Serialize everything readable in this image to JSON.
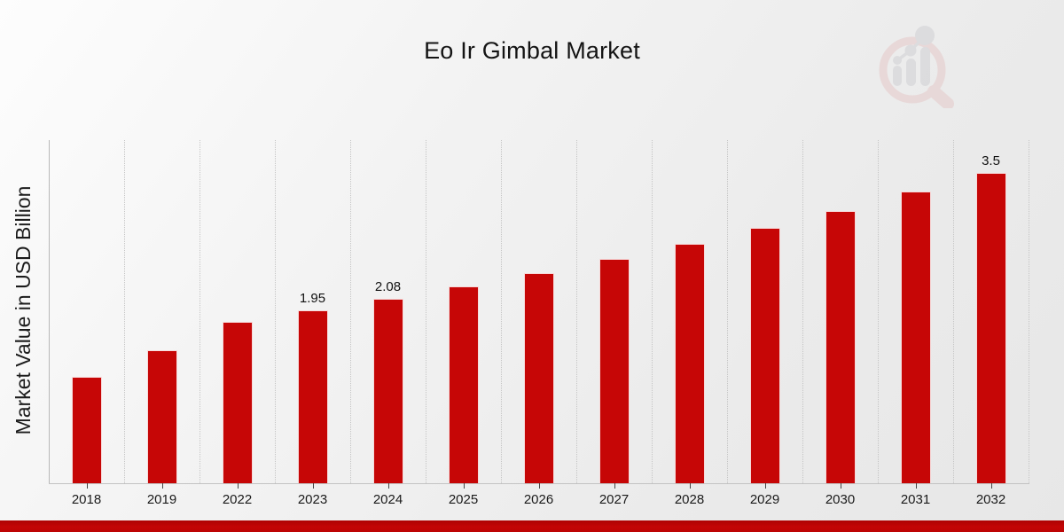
{
  "title": "Eo Ir Gimbal Market",
  "ylabel": "Market Value in USD Billion",
  "logo": {
    "name": "magnifier-bar-chart-logo",
    "ring_color": "#e5c9c9",
    "bars_color": "#cfcfd3"
  },
  "chart_data": {
    "type": "bar",
    "title": "Eo Ir Gimbal Market",
    "xlabel": "",
    "ylabel": "Market Value in USD Billion",
    "categories": [
      "2018",
      "2019",
      "2022",
      "2023",
      "2024",
      "2025",
      "2026",
      "2027",
      "2028",
      "2029",
      "2030",
      "2031",
      "2032"
    ],
    "values": [
      1.2,
      1.5,
      1.82,
      1.95,
      2.08,
      2.22,
      2.37,
      2.53,
      2.7,
      2.88,
      3.07,
      3.29,
      3.5
    ],
    "annotations": {
      "2023": "1.95",
      "2024": "2.08",
      "2032": "3.5"
    },
    "bar_color": "#c60606",
    "ylim": [
      0,
      3.87
    ],
    "grid": "vertical-dotted",
    "legend": "none"
  },
  "footer": {
    "band_color": "#c30505"
  }
}
